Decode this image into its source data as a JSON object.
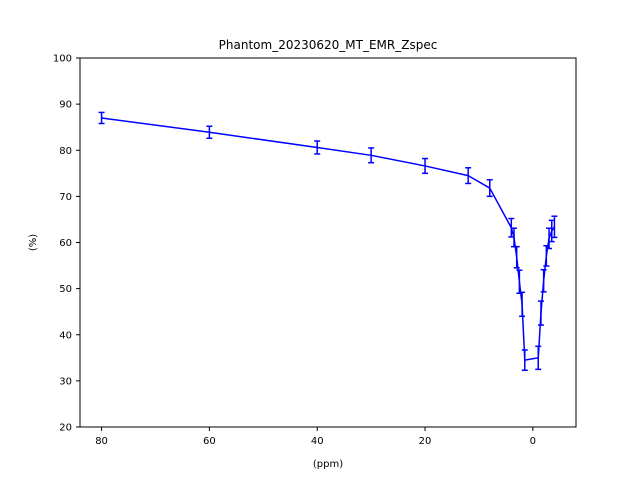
{
  "chart_data": {
    "type": "line",
    "title": "Phantom_20230620_MT_EMR_Zspec",
    "xlabel": "(ppm)",
    "ylabel": "(%)",
    "xlim": [
      84,
      -8
    ],
    "ylim": [
      20,
      100
    ],
    "x_ticks": [
      80,
      60,
      40,
      20,
      0
    ],
    "y_ticks": [
      20,
      30,
      40,
      50,
      60,
      70,
      80,
      90,
      100
    ],
    "x_tick_labels": [
      "80",
      "60",
      "40",
      "20",
      "0"
    ],
    "y_tick_labels": [
      "20",
      "30",
      "40",
      "50",
      "60",
      "70",
      "80",
      "90",
      "100"
    ],
    "grid": false,
    "series": [
      {
        "color": "#0000ff",
        "x": [
          80,
          60,
          40,
          30,
          20,
          12,
          8,
          4,
          3.5,
          3,
          2.5,
          2,
          1.5,
          -1,
          -1.5,
          -2,
          -2.5,
          -3,
          -3.5,
          -4
        ],
        "y": [
          87,
          83.9,
          80.6,
          78.9,
          76.6,
          74.5,
          71.8,
          63.2,
          61.1,
          56.8,
          51.5,
          46.6,
          34.5,
          35,
          44.7,
          51.7,
          57.1,
          60.9,
          62.5,
          63.4
        ],
        "yerr": [
          1.2,
          1.3,
          1.4,
          1.6,
          1.6,
          1.7,
          1.8,
          2.0,
          2.0,
          2.3,
          2.5,
          2.6,
          2.2,
          2.5,
          2.6,
          2.4,
          2.2,
          2.2,
          2.3,
          2.3
        ]
      }
    ]
  }
}
